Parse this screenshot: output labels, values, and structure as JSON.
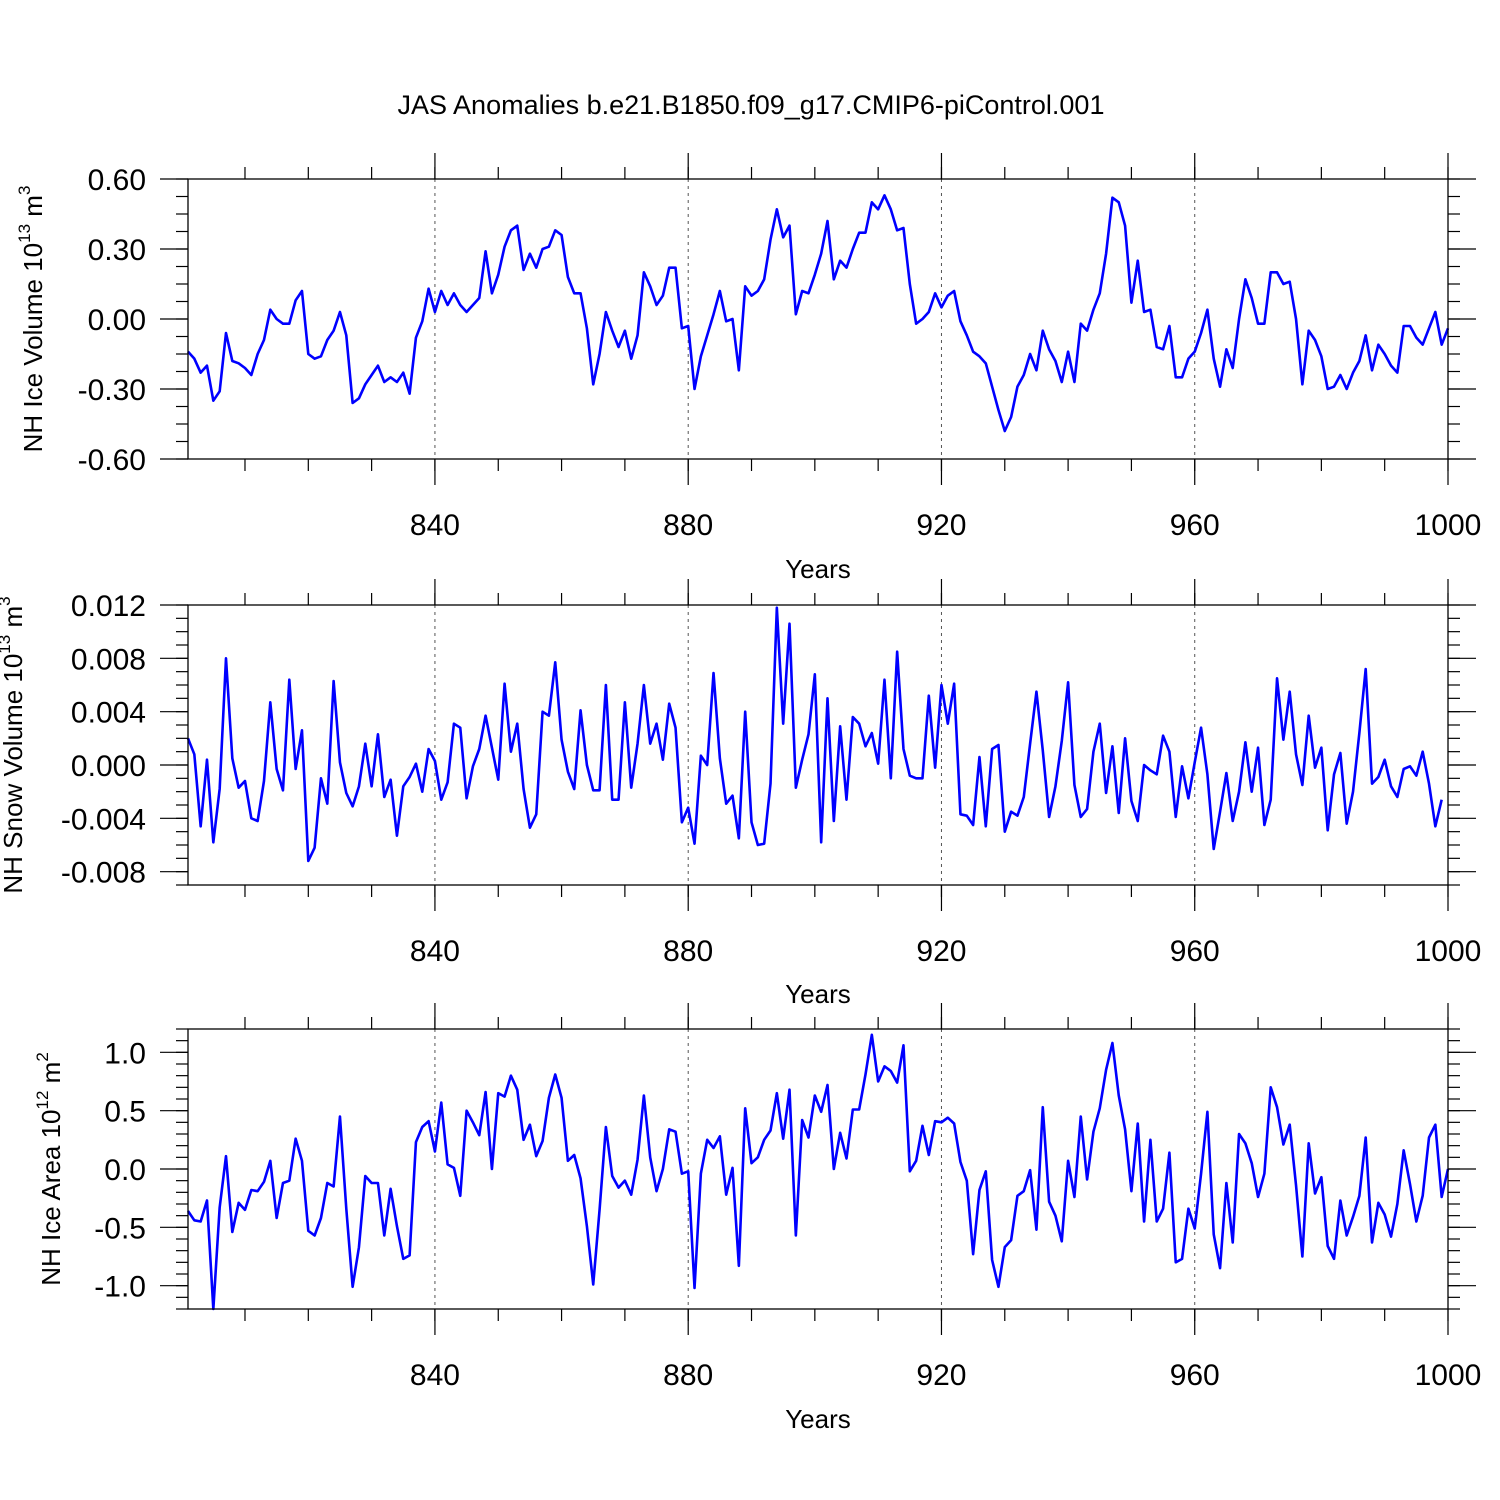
{
  "chart_data": [
    {
      "type": "line",
      "id": "ice-volume",
      "title": "JAS Anomalies b.e21.B1850.f09_g17.CMIP6-piControl.001",
      "xlabel": "Years",
      "ylabel_main": "NH Ice Volume 10",
      "ylabel_sup": "13",
      "ylabel_unit": " m",
      "ylabel_unit_sup": "3",
      "xlim": [
        801,
        1000
      ],
      "ylim": [
        -0.6,
        0.6
      ],
      "yticks": [
        -0.6,
        -0.3,
        0.0,
        0.3,
        0.6
      ],
      "ytick_labels": [
        "-0.60",
        "-0.30",
        "0.00",
        "0.30",
        "0.60"
      ],
      "yminor_step": 0.075,
      "xticks": [
        840,
        880,
        920,
        960,
        1000
      ],
      "xtick_labels": [
        "840",
        "880",
        "920",
        "960",
        "1000"
      ],
      "xminor_step": 10,
      "grid_x": [
        840,
        880,
        920,
        960
      ],
      "series": [
        {
          "name": "NH Ice Volume",
          "color": "#0000ff",
          "x_start": 801,
          "x_step": 1,
          "values": [
            -0.14,
            -0.17,
            -0.23,
            -0.2,
            -0.35,
            -0.31,
            -0.06,
            -0.18,
            -0.19,
            -0.21,
            -0.24,
            -0.15,
            -0.09,
            0.04,
            0.0,
            -0.02,
            -0.02,
            0.08,
            0.12,
            -0.15,
            -0.17,
            -0.16,
            -0.09,
            -0.05,
            0.03,
            -0.07,
            -0.36,
            -0.34,
            -0.28,
            -0.24,
            -0.2,
            -0.27,
            -0.25,
            -0.27,
            -0.23,
            -0.32,
            -0.08,
            -0.01,
            0.13,
            0.03,
            0.12,
            0.06,
            0.11,
            0.06,
            0.03,
            0.06,
            0.09,
            0.29,
            0.11,
            0.19,
            0.31,
            0.38,
            0.4,
            0.21,
            0.28,
            0.22,
            0.3,
            0.31,
            0.38,
            0.36,
            0.18,
            0.11,
            0.11,
            -0.04,
            -0.28,
            -0.15,
            0.03,
            -0.05,
            -0.12,
            -0.05,
            -0.17,
            -0.07,
            0.2,
            0.14,
            0.06,
            0.1,
            0.22,
            0.22,
            -0.04,
            -0.03,
            -0.3,
            -0.16,
            -0.07,
            0.02,
            0.12,
            -0.01,
            0.0,
            -0.22,
            0.14,
            0.1,
            0.12,
            0.17,
            0.34,
            0.47,
            0.35,
            0.4,
            0.02,
            0.12,
            0.11,
            0.19,
            0.28,
            0.42,
            0.17,
            0.25,
            0.22,
            0.3,
            0.37,
            0.37,
            0.5,
            0.47,
            0.53,
            0.47,
            0.38,
            0.39,
            0.15,
            -0.02,
            0.0,
            0.03,
            0.11,
            0.05,
            0.1,
            0.12,
            -0.01,
            -0.07,
            -0.14,
            -0.16,
            -0.19,
            -0.29,
            -0.39,
            -0.48,
            -0.42,
            -0.29,
            -0.24,
            -0.15,
            -0.22,
            -0.05,
            -0.13,
            -0.18,
            -0.27,
            -0.14,
            -0.27,
            -0.02,
            -0.05,
            0.04,
            0.11,
            0.28,
            0.52,
            0.5,
            0.4,
            0.07,
            0.25,
            0.03,
            0.04,
            -0.12,
            -0.13,
            -0.03,
            -0.25,
            -0.25,
            -0.17,
            -0.14,
            -0.06,
            0.04,
            -0.17,
            -0.29,
            -0.13,
            -0.21,
            0.0,
            0.17,
            0.09,
            -0.02,
            -0.02,
            0.2,
            0.2,
            0.15,
            0.16,
            0.0,
            -0.28,
            -0.05,
            -0.09,
            -0.16,
            -0.3,
            -0.29,
            -0.24,
            -0.3,
            -0.23,
            -0.18,
            -0.07,
            -0.22,
            -0.11,
            -0.15,
            -0.2,
            -0.23,
            -0.03,
            -0.03,
            -0.08,
            -0.11,
            -0.04,
            0.03,
            -0.11,
            -0.04
          ]
        }
      ]
    },
    {
      "type": "line",
      "id": "snow-volume",
      "xlabel": "Years",
      "ylabel_main": "NH Snow Volume 10",
      "ylabel_sup": "13",
      "ylabel_unit": " m",
      "ylabel_unit_sup": "3",
      "xlim": [
        801,
        1000
      ],
      "ylim": [
        -0.009,
        0.012
      ],
      "yticks": [
        -0.008,
        -0.004,
        0.0,
        0.004,
        0.008,
        0.012
      ],
      "ytick_labels": [
        "-0.008",
        "-0.004",
        "0.000",
        "0.004",
        "0.008",
        "0.012"
      ],
      "yminor_step": 0.001,
      "xticks": [
        840,
        880,
        920,
        960,
        1000
      ],
      "xtick_labels": [
        "840",
        "880",
        "920",
        "960",
        "1000"
      ],
      "xminor_step": 10,
      "grid_x": [
        840,
        880,
        920,
        960
      ],
      "series": [
        {
          "name": "NH Snow Volume",
          "color": "#0000ff",
          "x_start": 801,
          "x_step": 1,
          "values": [
            0.002,
            0.0008,
            -0.0046,
            0.0004,
            -0.0058,
            -0.0018,
            0.008,
            0.0005,
            -0.0017,
            -0.0012,
            -0.004,
            -0.0042,
            -0.0012,
            0.0047,
            -0.0003,
            -0.0019,
            0.0064,
            -0.0003,
            0.0026,
            -0.0072,
            -0.0062,
            -0.001,
            -0.0029,
            0.0063,
            0.0002,
            -0.0021,
            -0.0031,
            -0.0016,
            0.0016,
            -0.0016,
            0.0023,
            -0.0024,
            -0.0011,
            -0.0053,
            -0.0016,
            -0.0009,
            0.0001,
            -0.002,
            0.0012,
            0.0003,
            -0.0026,
            -0.0013,
            0.0031,
            0.0028,
            -0.0025,
            -0.0001,
            0.0012,
            0.0037,
            0.0013,
            -0.0011,
            0.0061,
            0.001,
            0.0031,
            -0.0018,
            -0.0047,
            -0.0037,
            0.004,
            0.0037,
            0.0077,
            0.0019,
            -0.0005,
            -0.0018,
            0.0041,
            0.0,
            -0.0019,
            -0.0019,
            0.006,
            -0.0026,
            -0.0026,
            0.0047,
            -0.0017,
            0.0016,
            0.006,
            0.0016,
            0.0031,
            0.0004,
            0.0046,
            0.0028,
            -0.0043,
            -0.0032,
            -0.0059,
            0.0007,
            0.0,
            0.0069,
            0.0005,
            -0.0029,
            -0.0023,
            -0.0055,
            0.004,
            -0.0043,
            -0.006,
            -0.0059,
            -0.0014,
            0.0118,
            0.0031,
            0.0106,
            -0.0017,
            0.0004,
            0.0023,
            0.0068,
            -0.0058,
            0.005,
            -0.0042,
            0.0029,
            -0.0026,
            0.0036,
            0.0031,
            0.0014,
            0.0024,
            0.0001,
            0.0064,
            -0.001,
            0.0085,
            0.0012,
            -0.0008,
            -0.001,
            -0.001,
            0.0052,
            -0.0002,
            0.006,
            0.0031,
            0.0061,
            -0.0037,
            -0.0038,
            -0.0045,
            0.0006,
            -0.0046,
            0.0012,
            0.0015,
            -0.005,
            -0.0035,
            -0.0038,
            -0.0024,
            0.0016,
            0.0055,
            0.0011,
            -0.0039,
            -0.0016,
            0.0018,
            0.0062,
            -0.0015,
            -0.0039,
            -0.0033,
            0.001,
            0.0031,
            -0.0021,
            0.0014,
            -0.0036,
            0.002,
            -0.0027,
            -0.0042,
            0.0,
            -0.0004,
            -0.0007,
            0.0022,
            0.001,
            -0.0039,
            -0.0001,
            -0.0025,
            0.0002,
            0.0028,
            -0.0007,
            -0.0063,
            -0.0035,
            -0.0006,
            -0.0042,
            -0.002,
            0.0017,
            -0.002,
            0.0013,
            -0.0045,
            -0.0026,
            0.0065,
            0.0019,
            0.0055,
            0.0008,
            -0.0015,
            0.0037,
            -0.0002,
            0.0013,
            -0.0049,
            -0.0007,
            0.0009,
            -0.0044,
            -0.002,
            0.0024,
            0.0072,
            -0.0014,
            -0.0009,
            0.0004,
            -0.0016,
            -0.0024,
            -0.0003,
            -0.0001,
            -0.0008,
            0.001,
            -0.0014,
            -0.0046,
            -0.0026
          ]
        }
      ]
    },
    {
      "type": "line",
      "id": "ice-area",
      "xlabel": "Years",
      "ylabel_main": "NH Ice Area 10",
      "ylabel_sup": "12",
      "ylabel_unit": " m",
      "ylabel_unit_sup": "2",
      "xlim": [
        801,
        1000
      ],
      "ylim": [
        -1.2,
        1.2
      ],
      "yticks": [
        -1.0,
        -0.5,
        0.0,
        0.5,
        1.0
      ],
      "ytick_labels": [
        "-1.0",
        "-0.5",
        "0.0",
        "0.5",
        "1.0"
      ],
      "yminor_step": 0.1,
      "xticks": [
        840,
        880,
        920,
        960,
        1000
      ],
      "xtick_labels": [
        "840",
        "880",
        "920",
        "960",
        "1000"
      ],
      "xminor_step": 10,
      "grid_x": [
        840,
        880,
        920,
        960
      ],
      "series": [
        {
          "name": "NH Ice Area",
          "color": "#0000ff",
          "x_start": 801,
          "x_step": 1,
          "values": [
            -0.36,
            -0.44,
            -0.45,
            -0.27,
            -1.2,
            -0.33,
            0.11,
            -0.54,
            -0.29,
            -0.35,
            -0.18,
            -0.19,
            -0.11,
            0.07,
            -0.42,
            -0.12,
            -0.1,
            0.26,
            0.07,
            -0.53,
            -0.57,
            -0.42,
            -0.12,
            -0.15,
            0.45,
            -0.34,
            -1.01,
            -0.67,
            -0.06,
            -0.12,
            -0.12,
            -0.57,
            -0.17,
            -0.49,
            -0.77,
            -0.74,
            0.23,
            0.36,
            0.41,
            0.15,
            0.57,
            0.04,
            0.01,
            -0.23,
            0.5,
            0.4,
            0.29,
            0.66,
            0.0,
            0.65,
            0.62,
            0.8,
            0.68,
            0.25,
            0.38,
            0.11,
            0.24,
            0.61,
            0.81,
            0.61,
            0.07,
            0.12,
            -0.08,
            -0.49,
            -0.99,
            -0.35,
            0.36,
            -0.06,
            -0.16,
            -0.1,
            -0.22,
            0.08,
            0.63,
            0.1,
            -0.19,
            0.0,
            0.34,
            0.32,
            -0.04,
            -0.02,
            -1.02,
            -0.04,
            0.25,
            0.18,
            0.28,
            -0.22,
            0.01,
            -0.83,
            0.52,
            0.05,
            0.1,
            0.25,
            0.33,
            0.65,
            0.26,
            0.68,
            -0.57,
            0.42,
            0.27,
            0.63,
            0.49,
            0.72,
            0.0,
            0.31,
            0.09,
            0.51,
            0.51,
            0.81,
            1.15,
            0.75,
            0.88,
            0.84,
            0.74,
            1.06,
            -0.02,
            0.07,
            0.37,
            0.12,
            0.41,
            0.4,
            0.44,
            0.39,
            0.06,
            -0.1,
            -0.73,
            -0.18,
            -0.02,
            -0.78,
            -1.01,
            -0.67,
            -0.61,
            -0.23,
            -0.19,
            -0.01,
            -0.52,
            0.53,
            -0.28,
            -0.4,
            -0.62,
            0.07,
            -0.24,
            0.45,
            -0.09,
            0.32,
            0.52,
            0.85,
            1.08,
            0.63,
            0.34,
            -0.19,
            0.39,
            -0.45,
            0.25,
            -0.45,
            -0.34,
            0.14,
            -0.8,
            -0.77,
            -0.34,
            -0.51,
            -0.04,
            0.49,
            -0.56,
            -0.85,
            -0.12,
            -0.63,
            0.3,
            0.22,
            0.05,
            -0.24,
            -0.04,
            0.7,
            0.53,
            0.21,
            0.38,
            -0.14,
            -0.75,
            0.22,
            -0.21,
            -0.07,
            -0.66,
            -0.77,
            -0.27,
            -0.57,
            -0.41,
            -0.23,
            0.27,
            -0.63,
            -0.29,
            -0.39,
            -0.58,
            -0.3,
            0.16,
            -0.13,
            -0.45,
            -0.23,
            0.27,
            0.38,
            -0.24,
            0.0
          ]
        }
      ]
    }
  ]
}
